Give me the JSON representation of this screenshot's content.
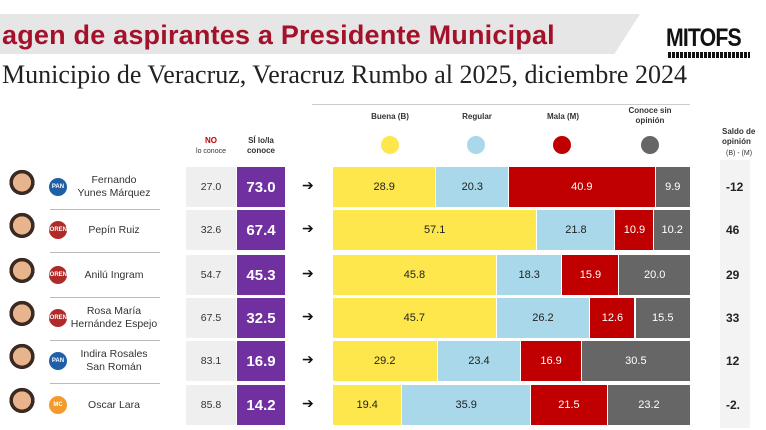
{
  "header": {
    "title": "agen de aspirantes a Presidente Municipal",
    "subtitle": "Municipio de Veracruz, Veracruz Rumbo al 2025, diciembre 2024",
    "logo": "MITOFS"
  },
  "columns": {
    "no_top": "NO",
    "no_bottom": "lo conoce",
    "si": "SÍ lo/la conoce",
    "buena": "Buena (B)",
    "regular": "Regular",
    "mala": "Mala (M)",
    "sin_opinion": "Conoce sin opinión",
    "saldo": "Saldo de opinión",
    "saldo_sub": "(B) - (M)"
  },
  "colors": {
    "buena": "#fde74c",
    "regular": "#a8d8ea",
    "mala": "#c00000",
    "sin_opinion": "#666666",
    "conoce": "#7030a0"
  },
  "chart_data": {
    "type": "bar",
    "stacked": true,
    "orientation": "horizontal",
    "categories": [
      "Fernando Yunes Márquez",
      "Pepín Ruiz",
      "Anilú Ingram",
      "Rosa María Hernández Espejo",
      "Indira Rosales San Román",
      "Oscar Lara"
    ],
    "series": [
      {
        "name": "Buena (B)",
        "values": [
          28.9,
          57.1,
          45.8,
          45.7,
          29.2,
          19.4
        ]
      },
      {
        "name": "Regular",
        "values": [
          20.3,
          21.8,
          18.3,
          26.2,
          23.4,
          35.9
        ]
      },
      {
        "name": "Mala (M)",
        "values": [
          40.9,
          10.9,
          15.9,
          12.6,
          16.9,
          21.5
        ]
      },
      {
        "name": "Conoce sin opinión",
        "values": [
          9.9,
          10.2,
          20.0,
          15.5,
          30.5,
          23.2
        ]
      }
    ],
    "no_conoce": [
      27.0,
      32.6,
      54.7,
      67.5,
      83.1,
      85.8
    ],
    "si_conoce": [
      73.0,
      67.4,
      45.3,
      32.5,
      16.9,
      14.2
    ]
  },
  "rows": [
    {
      "name1": "Fernando",
      "name2": "Yunes Márquez",
      "party": "PAN",
      "no": "27.0",
      "si": "73.0",
      "b": "28.9",
      "r": "20.3",
      "m": "40.9",
      "s": "9.9",
      "saldo": "-12"
    },
    {
      "name1": "Pepín Ruiz",
      "name2": "",
      "party": "MORENA",
      "no": "32.6",
      "si": "67.4",
      "b": "57.1",
      "r": "21.8",
      "m": "10.9",
      "s": "10.2",
      "saldo": "46"
    },
    {
      "name1": "Anilú Ingram",
      "name2": "",
      "party": "MORENA",
      "no": "54.7",
      "si": "45.3",
      "b": "45.8",
      "r": "18.3",
      "m": "15.9",
      "s": "20.0",
      "saldo": "29"
    },
    {
      "name1": "Rosa María",
      "name2": "Hernández Espejo",
      "party": "MORENA",
      "no": "67.5",
      "si": "32.5",
      "b": "45.7",
      "r": "26.2",
      "m": "12.6",
      "s": "15.5",
      "saldo": "33"
    },
    {
      "name1": "Indira Rosales",
      "name2": "San Román",
      "party": "PAN",
      "no": "83.1",
      "si": "16.9",
      "b": "29.2",
      "r": "23.4",
      "m": "16.9",
      "s": "30.5",
      "saldo": "12"
    },
    {
      "name1": "Oscar Lara",
      "name2": "",
      "party": "MC",
      "no": "85.8",
      "si": "14.2",
      "b": "19.4",
      "r": "35.9",
      "m": "21.5",
      "s": "23.2",
      "saldo": "-2."
    }
  ]
}
